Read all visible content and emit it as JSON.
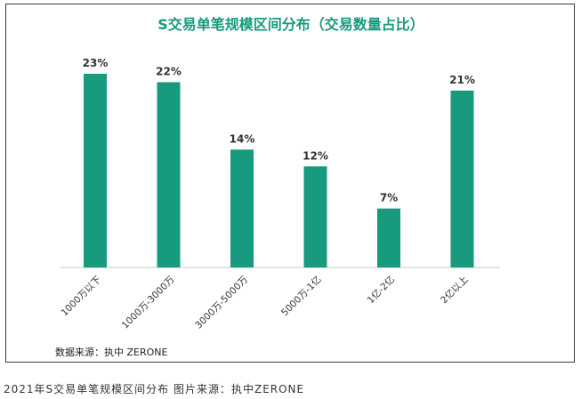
{
  "chart_data": {
    "type": "bar",
    "title": "S交易单笔规模区间分布（交易数量占比）",
    "categories": [
      "1000万以下",
      "1000万-3000万",
      "3000万-5000万",
      "5000万-1亿",
      "1亿-2亿",
      "2亿以上"
    ],
    "values": [
      23,
      22,
      14,
      12,
      7,
      21
    ],
    "data_labels": [
      "23%",
      "22%",
      "14%",
      "12%",
      "7%",
      "21%"
    ],
    "ylim": [
      0,
      23
    ],
    "grid": false,
    "legend": "none",
    "bar_color": "#189a7e",
    "title_color": "#189a7e"
  },
  "source_note": "数据来源：执中 ZERONE",
  "caption": "2021年S交易单笔规模区间分布 图片来源：执中ZERONE"
}
